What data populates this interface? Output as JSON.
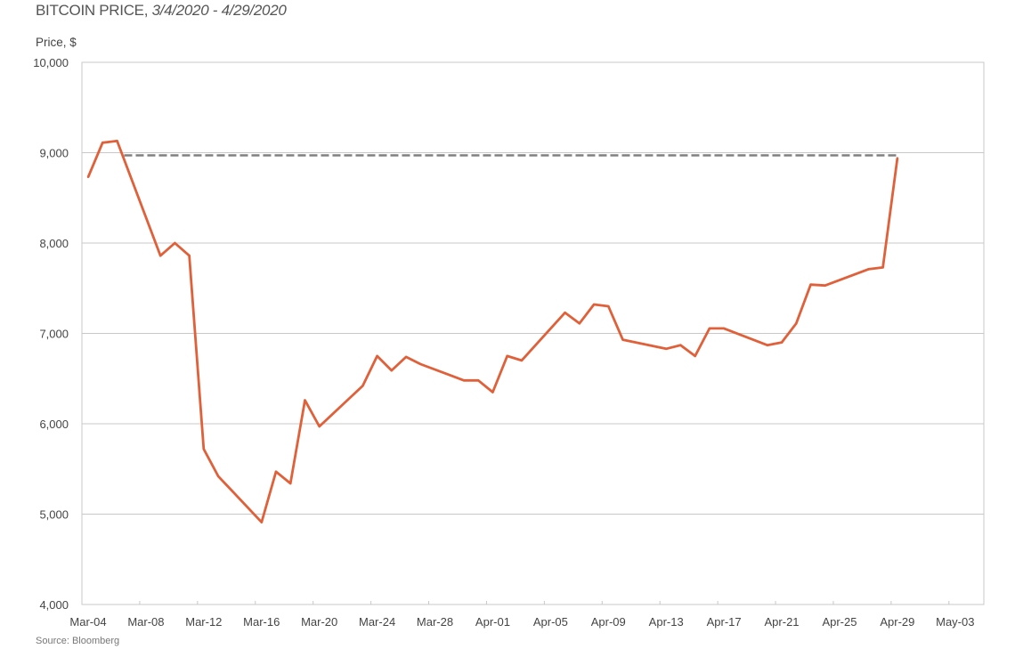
{
  "chart_data": {
    "type": "line",
    "title": "BITCOIN PRICE,",
    "subtitle": "3/4/2020 - 4/29/2020",
    "ylabel": "Price, $",
    "xlabel": "",
    "source": "Source: Bloomberg",
    "ylim": [
      4000,
      10000
    ],
    "xlim": [
      "2020-03-04",
      "2020-05-03"
    ],
    "yticks": [
      "4,000",
      "5,000",
      "6,000",
      "7,000",
      "8,000",
      "9,000",
      "10,000"
    ],
    "ytick_values": [
      4000,
      5000,
      6000,
      7000,
      8000,
      9000,
      10000
    ],
    "xticks": [
      "Mar-04",
      "Mar-08",
      "Mar-12",
      "Mar-16",
      "Mar-20",
      "Mar-24",
      "Mar-28",
      "Apr-01",
      "Apr-05",
      "Apr-09",
      "Apr-13",
      "Apr-17",
      "Apr-21",
      "Apr-25",
      "Apr-29",
      "May-03"
    ],
    "grid": "horizontal",
    "colors": {
      "line": "#e0603a",
      "reference": "#808080",
      "grid": "#c8c8c8"
    },
    "series": [
      {
        "x": [
          "2020-03-04",
          "2020-03-05",
          "2020-03-06",
          "2020-03-09",
          "2020-03-10",
          "2020-03-11",
          "2020-03-12",
          "2020-03-13",
          "2020-03-16",
          "2020-03-17",
          "2020-03-18",
          "2020-03-19",
          "2020-03-20",
          "2020-03-23",
          "2020-03-24",
          "2020-03-25",
          "2020-03-26",
          "2020-03-27",
          "2020-03-30",
          "2020-03-31",
          "2020-04-01",
          "2020-04-02",
          "2020-04-03",
          "2020-04-06",
          "2020-04-07",
          "2020-04-08",
          "2020-04-09",
          "2020-04-10",
          "2020-04-13",
          "2020-04-14",
          "2020-04-15",
          "2020-04-16",
          "2020-04-17",
          "2020-04-20",
          "2020-04-21",
          "2020-04-22",
          "2020-04-23",
          "2020-04-24",
          "2020-04-27",
          "2020-04-28",
          "2020-04-29"
        ],
        "values": [
          8730,
          9110,
          9130,
          7860,
          8000,
          7860,
          5720,
          5420,
          4910,
          5470,
          5340,
          6260,
          5970,
          6420,
          6750,
          6590,
          6740,
          6660,
          6480,
          6480,
          6350,
          6750,
          6700,
          7230,
          7110,
          7320,
          7300,
          6930,
          6830,
          6870,
          6750,
          7055,
          7055,
          6870,
          6900,
          7110,
          7540,
          7530,
          7710,
          7730,
          8940
        ]
      }
    ],
    "reference_line": {
      "style": "dashed",
      "value": 8970,
      "x_start": "2020-03-06",
      "x_end": "2020-04-29"
    }
  }
}
